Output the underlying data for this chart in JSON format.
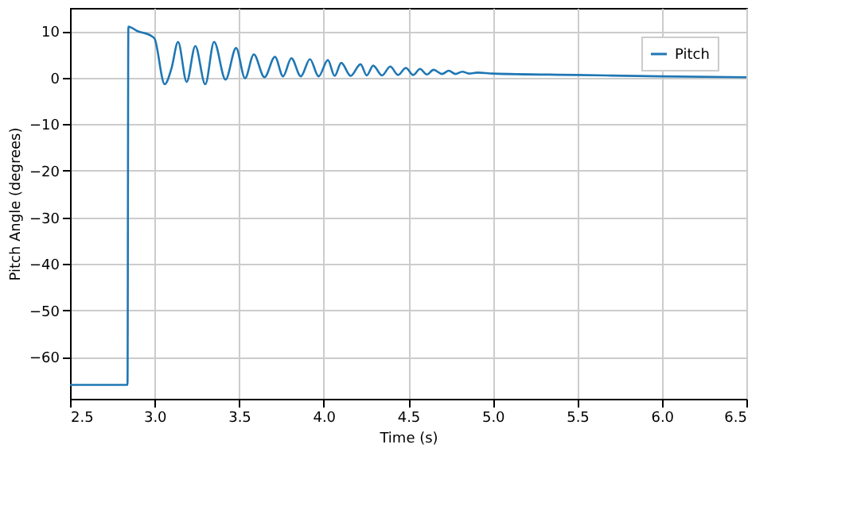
{
  "chart_data": {
    "type": "line",
    "xlabel": "Time (s)",
    "ylabel": "Pitch Angle (degrees)",
    "xlim": [
      2.5,
      6.5
    ],
    "xticks": [
      2.5,
      {
        "value": 3,
        "label": "3.0"
      },
      3.5,
      {
        "value": 4,
        "label": "4.0"
      },
      4.5,
      {
        "value": 5,
        "label": "5.0"
      },
      5.5,
      {
        "value": 6,
        "label": "6.0"
      },
      6.5
    ],
    "ylim": [
      -69,
      15
    ],
    "yticks": [
      -60,
      -50,
      -40,
      -30,
      -20,
      -10,
      0,
      10
    ],
    "grid": true,
    "legend": "top right",
    "series": [
      {
        "name": "Pitch",
        "color": "#1f77b4",
        "x": [
          2.5,
          2.84,
          2.845,
          2.9,
          2.98,
          3.0,
          3.06,
          3.1,
          3.139,
          3.19,
          3.241,
          3.3,
          3.352,
          3.42,
          3.482,
          3.535,
          3.587,
          3.65,
          3.712,
          3.76,
          3.809,
          3.865,
          3.919,
          3.97,
          4.025,
          4.065,
          4.104,
          4.16,
          4.218,
          4.255,
          4.293,
          4.345,
          4.394,
          4.44,
          4.486,
          4.53,
          4.57,
          4.61,
          4.65,
          4.7,
          4.74,
          4.78,
          4.82,
          4.86,
          4.91,
          5.0,
          5.5,
          6.0,
          6.5
        ],
        "values": [
          -66,
          -66,
          11,
          10,
          9,
          8.4,
          -1.4,
          2,
          7.7,
          -0.9,
          6.8,
          -1.4,
          7.7,
          -0.4,
          6.4,
          -0.1,
          5.0,
          0.1,
          4.5,
          0.3,
          4.2,
          0.3,
          4.0,
          0.3,
          3.8,
          0.4,
          3.2,
          0.4,
          2.9,
          0.5,
          2.6,
          0.5,
          2.4,
          0.6,
          2.1,
          0.6,
          1.9,
          0.7,
          1.7,
          0.8,
          1.5,
          0.8,
          1.3,
          0.9,
          1.1,
          0.9,
          0.6,
          0.3,
          0.1
        ]
      }
    ]
  }
}
